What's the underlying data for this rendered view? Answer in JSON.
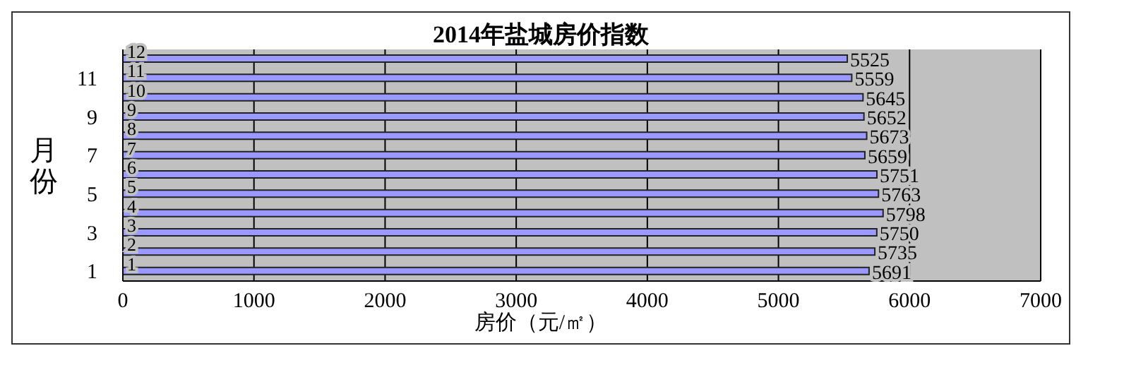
{
  "chart_data": {
    "type": "bar",
    "orientation": "horizontal",
    "title": "2014年盐城房价指数",
    "xlabel": "房价（元/㎡）",
    "ylabel": "月份",
    "categories": [
      "12",
      "11",
      "10",
      "9",
      "8",
      "7",
      "6",
      "5",
      "4",
      "3",
      "2",
      "1"
    ],
    "values": [
      5525,
      5559,
      5645,
      5652,
      5673,
      5659,
      5751,
      5763,
      5798,
      5750,
      5735,
      5691
    ],
    "color": "#9999ff",
    "xlim": [
      0,
      7000
    ],
    "xticks": [
      0,
      1000,
      2000,
      3000,
      4000,
      5000,
      6000,
      7000
    ],
    "grid": "x",
    "data_labels": true
  }
}
